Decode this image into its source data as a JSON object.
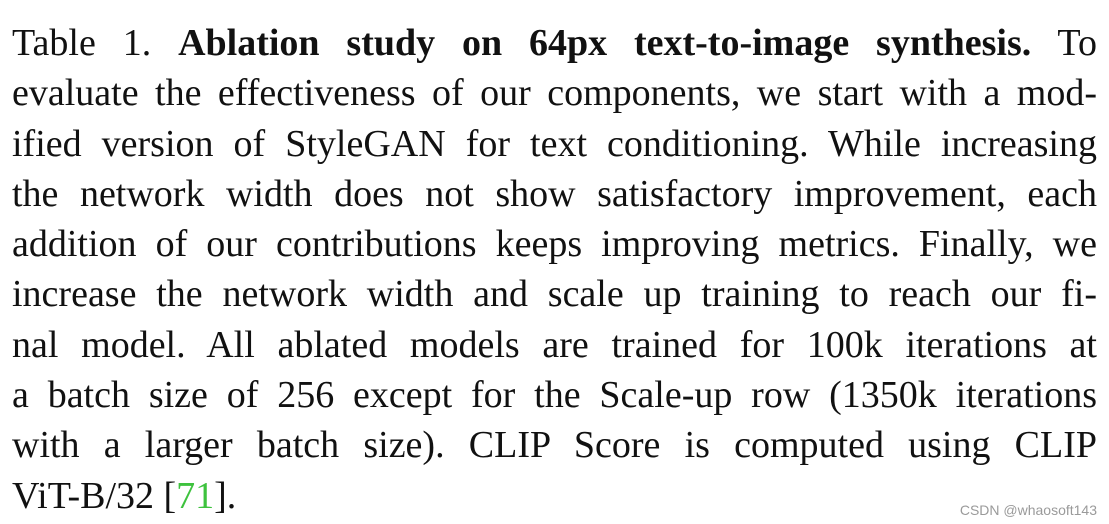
{
  "caption": {
    "label": "Table 1.",
    "title": "Ablation study on 64px text-to-image synthesis.",
    "line1_tail": "To",
    "line2": "evaluate the effectiveness of our components, we start with a mod-",
    "line3": "ified version of StyleGAN for text conditioning. While increasing",
    "line4": "the network width does not show satisfactory improvement, each",
    "line5": "addition of our contributions keeps improving metrics. Finally, we",
    "line6": "increase the network width and scale up training to reach our fi-",
    "line7": "nal model. All ablated models are trained for 100k iterations at",
    "line8": "a batch size of 256 except for the Scale-up row (1350k iterations",
    "line9": "with a larger batch size). CLIP Score is computed using CLIP",
    "line10_pre": "ViT-B/32 [",
    "citation": "71",
    "line10_post": "]."
  },
  "watermark": "CSDN @whaosoft143",
  "colors": {
    "text": "#111111",
    "citation": "#3ec23e",
    "watermark": "#9a9a9a"
  }
}
